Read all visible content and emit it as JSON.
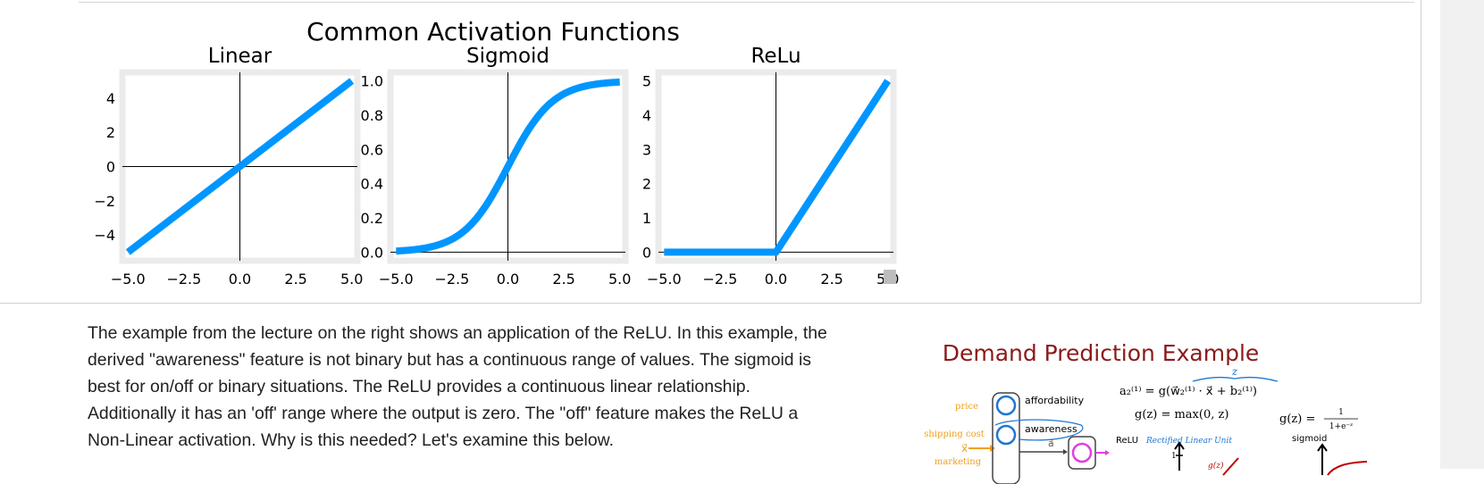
{
  "chart_data": {
    "title": "Common Activation Functions",
    "subplots": [
      {
        "type": "line",
        "title": "Linear",
        "x": [
          -5.0,
          5.0
        ],
        "y": [
          -5.0,
          5.0
        ],
        "xlim": [
          -5.25,
          5.25
        ],
        "ylim": [
          -5.5,
          5.5
        ],
        "xticks": [
          -5.0,
          -2.5,
          0.0,
          2.5,
          5.0
        ],
        "xtick_labels": [
          "−5.0",
          "−2.5",
          "0.0",
          "2.5",
          "5.0"
        ],
        "yticks": [
          4,
          2,
          0,
          -2,
          -4
        ],
        "ytick_labels": [
          "4",
          "2",
          "0",
          "−2",
          "−4"
        ],
        "color": "#0096ff",
        "grid": false
      },
      {
        "type": "line",
        "title": "Sigmoid",
        "function": "1/(1+exp(-z))",
        "x_range": [
          -5.0,
          5.0
        ],
        "xlim": [
          -5.25,
          5.25
        ],
        "ylim": [
          -0.05,
          1.05
        ],
        "xticks": [
          -5.0,
          -2.5,
          0.0,
          2.5,
          5.0
        ],
        "xtick_labels": [
          "−5.0",
          "−2.5",
          "0.0",
          "2.5",
          "5.0"
        ],
        "yticks": [
          1.0,
          0.8,
          0.6,
          0.4,
          0.2,
          0.0
        ],
        "ytick_labels": [
          "1.0",
          "0.8",
          "0.6",
          "0.4",
          "0.2",
          "0.0"
        ],
        "color": "#0096ff",
        "grid": false
      },
      {
        "type": "line",
        "title": "ReLu",
        "x": [
          -5.0,
          0.0,
          5.0
        ],
        "y": [
          0.0,
          0.0,
          5.0
        ],
        "xlim": [
          -5.25,
          5.25
        ],
        "ylim": [
          -0.25,
          5.25
        ],
        "xticks": [
          -5.0,
          -2.5,
          0.0,
          2.5,
          5.0
        ],
        "xtick_labels": [
          "−5.0",
          "−2.5",
          "0.0",
          "2.5",
          "5.0"
        ],
        "yticks": [
          5,
          4,
          3,
          2,
          1,
          0
        ],
        "ytick_labels": [
          "5",
          "4",
          "3",
          "2",
          "1",
          "0"
        ],
        "color": "#0096ff",
        "grid": false
      }
    ]
  },
  "markdown": {
    "lines": [
      "The example from the lecture on the right shows an application of the ReLU. In this example, the",
      "derived \"awareness\" feature is not binary but has a continuous range of values. The sigmoid is",
      "best for on/off or binary situations. The ReLU provides a continuous linear relationship.",
      "Additionally it has an 'off' range where the output is zero. The \"off\" feature makes the ReLU a",
      "Non-Linear activation. Why is this needed? Let's examine this below."
    ]
  },
  "demand_figure": {
    "title": "Demand Prediction Example",
    "title_color": "#8b1a1a",
    "inputs": [
      "price",
      "shipping cost",
      "marketing"
    ],
    "input_vector": "x⃗",
    "hidden_labels": [
      "affordability",
      "awareness"
    ],
    "activation_label": "a⃗",
    "eq_neuron": "a₂⁽¹⁾ = g(w⃗₂⁽¹⁾ · x⃗ + b₂⁽¹⁾)",
    "eq_z": "z",
    "eq_relu": "g(z) = max(0, z)",
    "relu_name": "ReLU",
    "relu_long": "Rectified Linear Unit",
    "eq_sigmoid_lhs": "g(z) =",
    "eq_sigmoid_num": "1",
    "eq_sigmoid_den": "1+e⁻ᶻ",
    "sigmoid_name": "sigmoid",
    "axis_tick": "1",
    "graph_label": "g(z)",
    "colors": {
      "input": "#f0a020",
      "neuron": "#1f77d0",
      "output": "#e040e0",
      "relu_text": "#1f77d0"
    }
  },
  "colors": {
    "line": "#0096ff",
    "axes_bg": "#ebebeb",
    "text": "#212121"
  }
}
